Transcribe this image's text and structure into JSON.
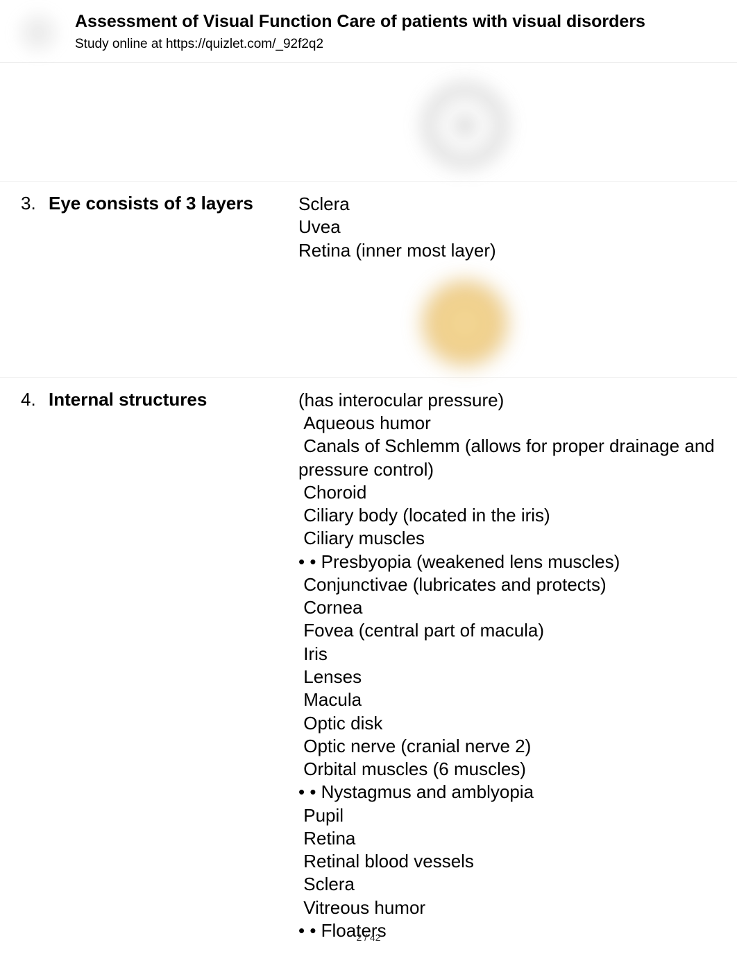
{
  "header": {
    "title": "Assessment of Visual Function Care of patients with visual disorders",
    "subtitle": "Study online at https://quizlet.com/_92f2q2"
  },
  "items": [
    {
      "num": "3.",
      "term": "Eye consists of 3 layers",
      "def": "Sclera\nUvea\nRetina (inner most layer)"
    },
    {
      "num": "4.",
      "term": "Internal structures",
      "def": "(has interocular pressure)\n Aqueous humor\n Canals of Schlemm (allows for proper drainage and pressure control)\n Choroid\n Ciliary body (located in the iris)\n Ciliary muscles\n• • Presbyopia (weakened lens muscles)\n Conjunctivae (lubricates and protects)\n Cornea\n Fovea (central part of macula)\n Iris\n Lenses\n Macula\n Optic disk\n Optic nerve (cranial nerve 2)\n Orbital muscles (6 muscles)\n• • Nystagmus and amblyopia\n Pupil\n Retina\n Retinal blood vessels\n Sclera\n Vitreous humor\n• • Floaters"
    }
  ],
  "footer": {
    "page": "2 / 42"
  },
  "colors": {
    "text": "#000000",
    "background": "#ffffff",
    "divider": "#e8e8e8"
  }
}
